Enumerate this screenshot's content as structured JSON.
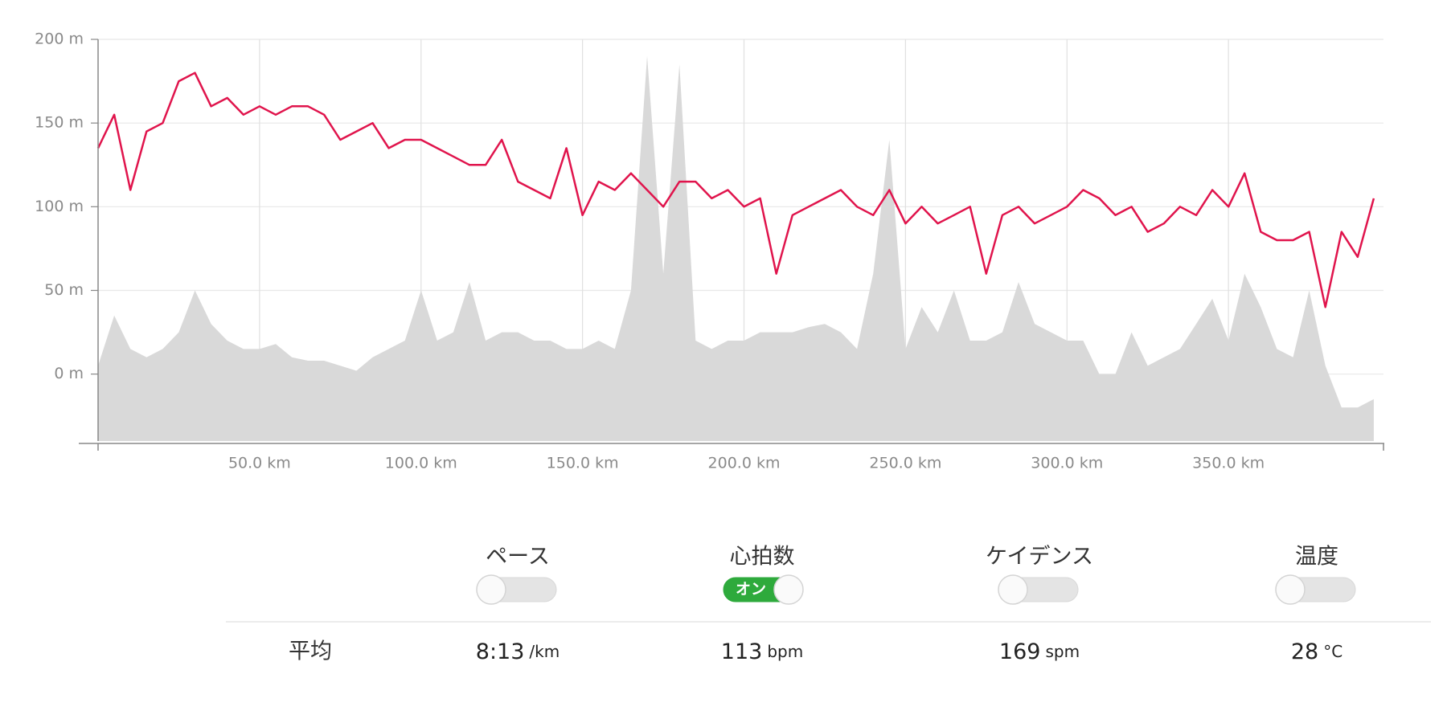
{
  "chart_data": {
    "type": "line",
    "x": [
      0,
      5,
      10,
      15,
      20,
      25,
      30,
      35,
      40,
      45,
      50,
      55,
      60,
      65,
      70,
      75,
      80,
      85,
      90,
      95,
      100,
      105,
      110,
      115,
      120,
      125,
      130,
      135,
      140,
      145,
      150,
      155,
      160,
      165,
      170,
      175,
      180,
      185,
      190,
      195,
      200,
      205,
      210,
      215,
      220,
      225,
      230,
      235,
      240,
      245,
      250,
      255,
      260,
      265,
      270,
      275,
      280,
      285,
      290,
      295,
      300,
      305,
      310,
      315,
      320,
      325,
      330,
      335,
      340,
      345,
      350,
      355,
      360,
      365,
      370,
      375,
      380,
      385,
      390,
      395
    ],
    "series": [
      {
        "color": "#d9d9d9",
        "style": "area",
        "values": [
          5,
          35,
          15,
          10,
          15,
          25,
          50,
          30,
          20,
          15,
          15,
          18,
          10,
          8,
          8,
          5,
          2,
          10,
          15,
          20,
          50,
          20,
          25,
          55,
          20,
          25,
          25,
          20,
          20,
          15,
          15,
          20,
          15,
          50,
          190,
          60,
          185,
          20,
          15,
          20,
          20,
          25,
          25,
          25,
          28,
          30,
          25,
          15,
          60,
          140,
          15,
          40,
          25,
          50,
          20,
          20,
          25,
          55,
          30,
          25,
          20,
          20,
          0,
          0,
          25,
          5,
          10,
          15,
          30,
          45,
          20,
          60,
          40,
          15,
          10,
          50,
          5,
          -20,
          -20,
          -15
        ]
      },
      {
        "color": "#e0144c",
        "style": "line",
        "values": [
          135,
          155,
          110,
          145,
          150,
          175,
          180,
          160,
          165,
          155,
          160,
          155,
          160,
          160,
          155,
          140,
          145,
          150,
          135,
          140,
          140,
          135,
          130,
          125,
          125,
          140,
          115,
          110,
          105,
          135,
          95,
          115,
          110,
          120,
          110,
          100,
          115,
          115,
          105,
          110,
          100,
          105,
          60,
          95,
          100,
          105,
          110,
          100,
          95,
          110,
          90,
          100,
          90,
          95,
          100,
          60,
          95,
          100,
          90,
          95,
          100,
          110,
          105,
          95,
          100,
          85,
          90,
          100,
          95,
          110,
          100,
          120,
          85,
          80,
          80,
          85,
          40,
          85,
          70,
          105
        ]
      }
    ],
    "xlim": [
      0,
      398
    ],
    "ylim": [
      -40,
      200
    ],
    "xticks": [
      {
        "value": 50,
        "label": "50.0 km"
      },
      {
        "value": 100,
        "label": "100.0 km"
      },
      {
        "value": 150,
        "label": "150.0 km"
      },
      {
        "value": 200,
        "label": "200.0 km"
      },
      {
        "value": 250,
        "label": "250.0 km"
      },
      {
        "value": 300,
        "label": "300.0 km"
      },
      {
        "value": 350,
        "label": "350.0 km"
      }
    ],
    "yticks": [
      {
        "value": 0,
        "label": "0 m"
      },
      {
        "value": 50,
        "label": "50 m"
      },
      {
        "value": 100,
        "label": "100 m"
      },
      {
        "value": 150,
        "label": "150 m"
      },
      {
        "value": 200,
        "label": "200 m"
      }
    ],
    "grid": true
  },
  "controls": [
    {
      "label": "ペース"
    },
    {
      "label": "心拍数",
      "on_label": "オン"
    },
    {
      "label": "ケイデンス"
    },
    {
      "label": "温度"
    }
  ],
  "summary": {
    "label": "平均",
    "items": [
      {
        "value": "8:13",
        "unit": "/km"
      },
      {
        "value": "113",
        "unit": "bpm"
      },
      {
        "value": "169",
        "unit": "spm"
      },
      {
        "value": "28",
        "unit": "°C"
      }
    ]
  }
}
